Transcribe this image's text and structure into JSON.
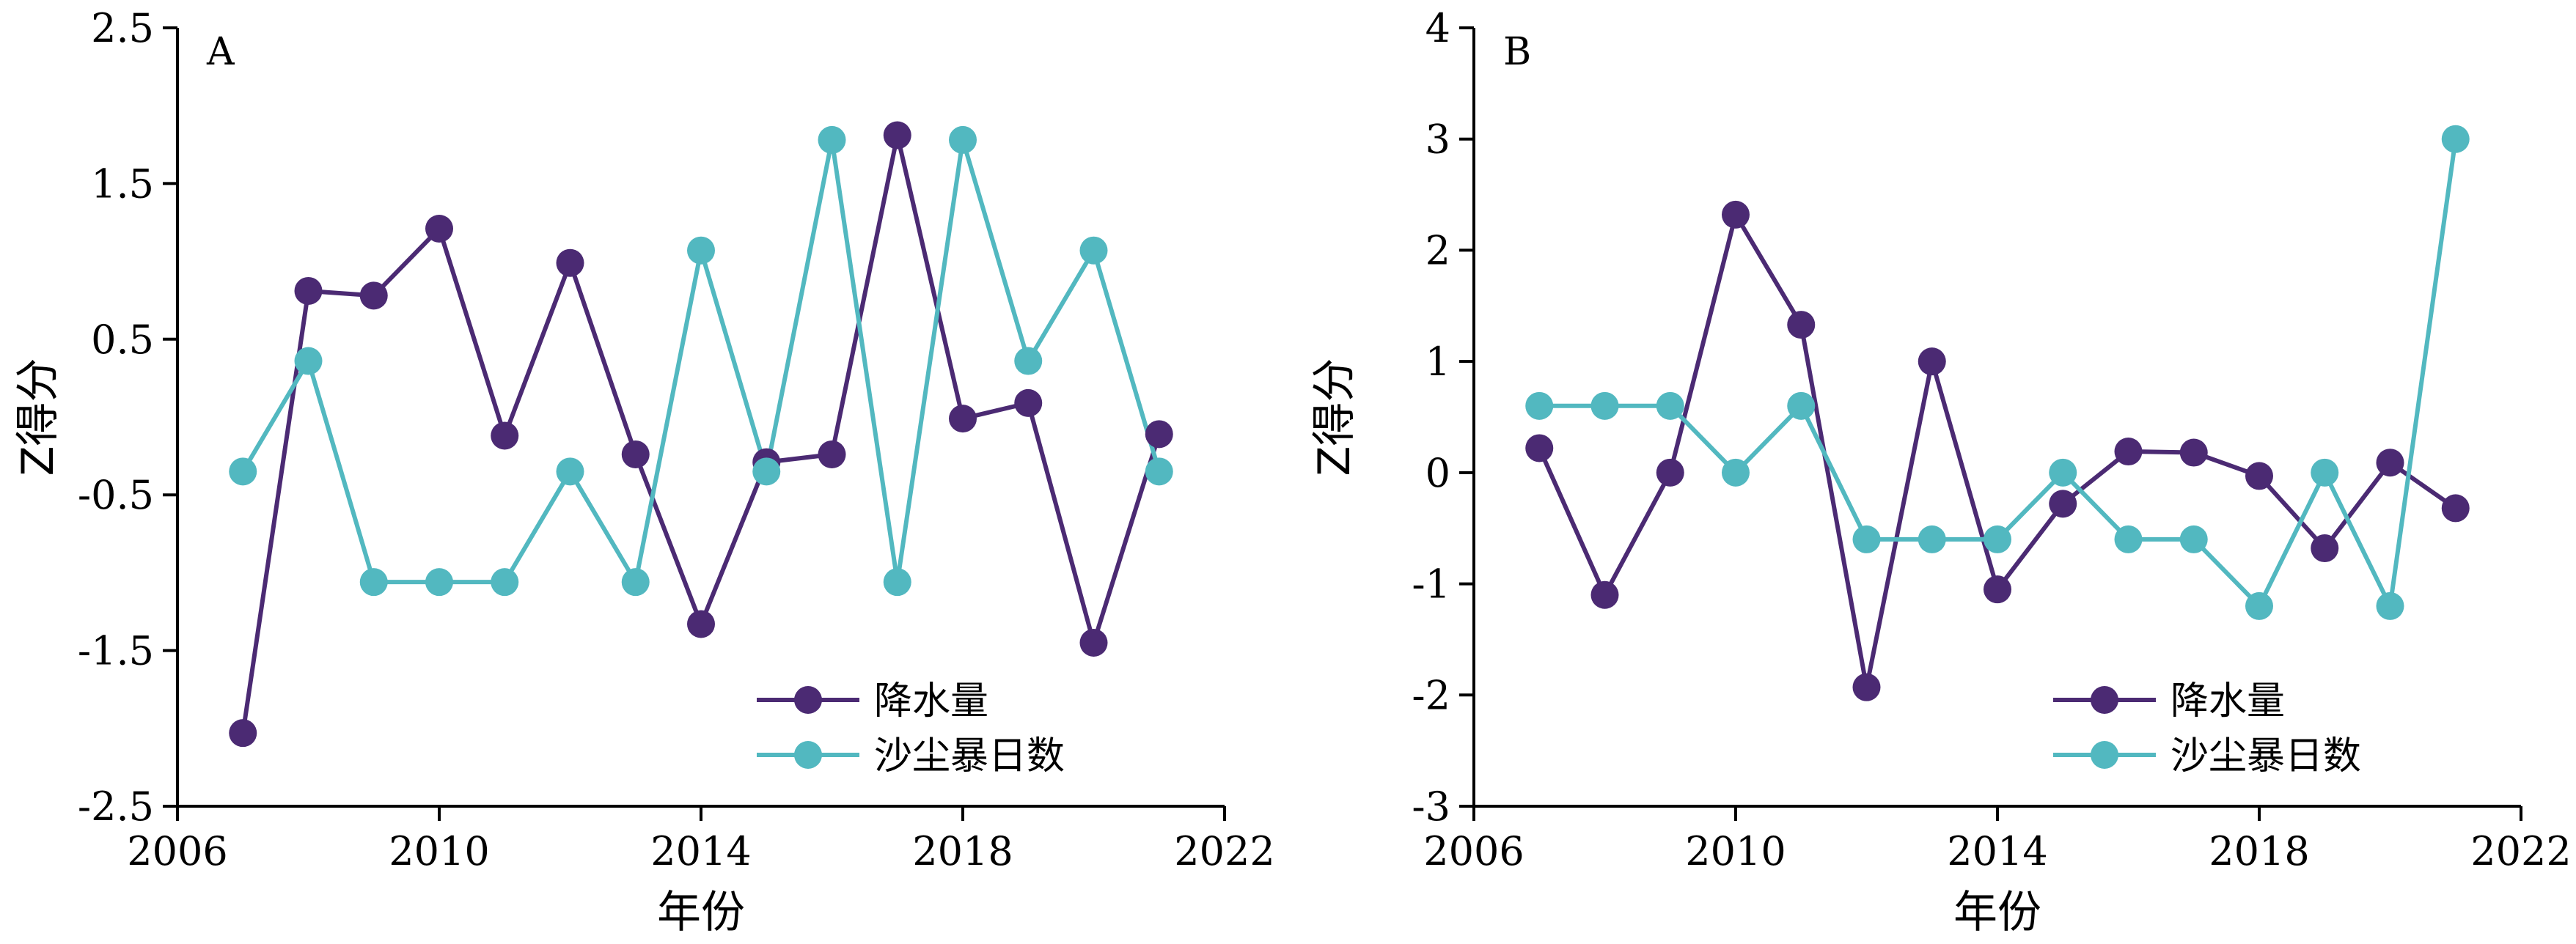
{
  "chart_data": [
    {
      "type": "line",
      "panel_label": "A",
      "xlabel": "年份",
      "ylabel": "Z得分",
      "xlim": [
        2006,
        2022
      ],
      "ylim": [
        -2.5,
        2.5
      ],
      "xticks": [
        "2006",
        "2010",
        "2014",
        "2018",
        "2022"
      ],
      "yticks": [
        "-2.5",
        "-1.5",
        "-0.5",
        "0.5",
        "1.5",
        "2.5"
      ],
      "grid": false,
      "legend_position": "bottom-right",
      "x": [
        2007,
        2008,
        2009,
        2010,
        2011,
        2012,
        2013,
        2014,
        2015,
        2016,
        2017,
        2018,
        2019,
        2020,
        2021
      ],
      "series": [
        {
          "name": "降水量",
          "color": "#4b2a73",
          "values": [
            -2.03,
            0.81,
            0.78,
            1.21,
            -0.12,
            0.99,
            -0.24,
            -1.33,
            -0.29,
            -0.24,
            1.81,
            -0.01,
            0.09,
            -1.45,
            -0.11
          ]
        },
        {
          "name": "沙尘暴日数",
          "color": "#52b8c0",
          "values": [
            -0.35,
            0.36,
            -1.06,
            -1.06,
            -1.06,
            -0.35,
            -1.06,
            1.07,
            -0.35,
            1.78,
            -1.06,
            1.78,
            0.36,
            1.07,
            -0.35
          ]
        }
      ]
    },
    {
      "type": "line",
      "panel_label": "B",
      "xlabel": "年份",
      "ylabel": "Z得分",
      "xlim": [
        2006,
        2022
      ],
      "ylim": [
        -3,
        4
      ],
      "xticks": [
        "2006",
        "2010",
        "2014",
        "2018",
        "2022"
      ],
      "yticks": [
        "-3",
        "-2",
        "-1",
        "0",
        "1",
        "2",
        "3",
        "4"
      ],
      "grid": false,
      "legend_position": "bottom-right",
      "x": [
        2007,
        2008,
        2009,
        2010,
        2011,
        2012,
        2013,
        2014,
        2015,
        2016,
        2017,
        2018,
        2019,
        2020,
        2021
      ],
      "series": [
        {
          "name": "降水量",
          "color": "#4b2a73",
          "values": [
            0.22,
            -1.1,
            0.0,
            2.32,
            1.33,
            -1.93,
            1.0,
            -1.05,
            -0.28,
            0.19,
            0.18,
            -0.03,
            -0.68,
            0.09,
            -0.32
          ]
        },
        {
          "name": "沙尘暴日数",
          "color": "#52b8c0",
          "values": [
            0.6,
            0.6,
            0.6,
            0.0,
            0.6,
            -0.6,
            -0.6,
            -0.6,
            0.0,
            -0.6,
            -0.6,
            -1.2,
            0.0,
            -1.2,
            3.0
          ]
        }
      ]
    }
  ]
}
